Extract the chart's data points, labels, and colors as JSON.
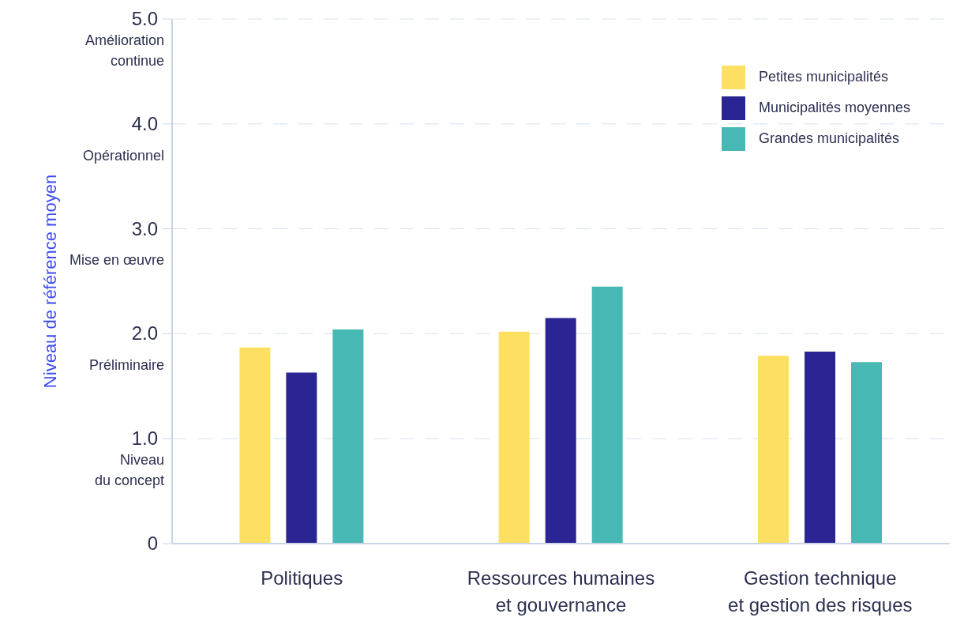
{
  "chart_data": {
    "type": "bar",
    "ylabel": "Niveau de référence moyen",
    "categories": [
      "Politiques",
      "Ressources humaines\net gouvernance",
      "Gestion technique\net gestion des risques"
    ],
    "series": [
      {
        "name": "Petites municipalités",
        "color": "#fde062",
        "values": [
          1.87,
          2.02,
          1.79
        ]
      },
      {
        "name": "Municipalités moyennes",
        "color": "#2a2593",
        "values": [
          1.63,
          2.15,
          1.83
        ]
      },
      {
        "name": "Grandes municipalités",
        "color": "#47b8b4",
        "values": [
          2.04,
          2.45,
          1.73
        ]
      }
    ],
    "ylim": [
      0,
      5
    ],
    "yticks": [
      {
        "value": 0,
        "label": "0"
      },
      {
        "value": 1,
        "label": "1.0"
      },
      {
        "value": 2,
        "label": "2.0"
      },
      {
        "value": 3,
        "label": "3.0"
      },
      {
        "value": 4,
        "label": "4.0"
      },
      {
        "value": 5,
        "label": "5.0"
      }
    ],
    "annotations": [
      "Amélioration\ncontinue",
      "Opérationnel",
      "Mise en œuvre",
      "Préliminaire",
      "Niveau\ndu concept"
    ],
    "grid": "y",
    "legend": "top right"
  }
}
